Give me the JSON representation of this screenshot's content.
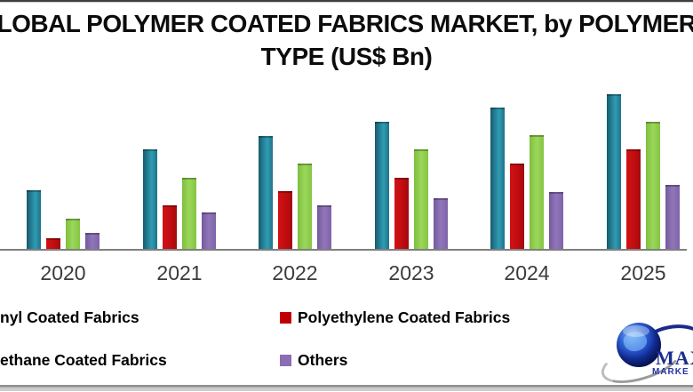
{
  "title": {
    "line1": "LOBAL POLYMER COATED FABRICS MARKET, by POLYMER",
    "line2": "TYPE (US$ Bn)"
  },
  "chart_data": {
    "type": "bar",
    "title": "LOBAL POLYMER COATED FABRICS MARKET, by POLYMER TYPE (US$ Bn)",
    "note": "No y-axis, tick labels or gridlines are visible; values are relative bar heights read from pixels.",
    "categories": [
      "2020",
      "2021",
      "2022",
      "2023",
      "2024",
      "2025"
    ],
    "series": [
      {
        "name": "nyl Coated Fabrics",
        "color": "#26859C",
        "values": [
          66,
          112,
          127,
          143,
          159,
          174
        ]
      },
      {
        "name": "Polyethylene Coated Fabrics",
        "color": "#C00D10",
        "values": [
          12,
          49,
          65,
          80,
          96,
          112
        ]
      },
      {
        "name": "ethane Coated Fabrics",
        "color": "#8FCF4E",
        "values": [
          34,
          80,
          96,
          112,
          128,
          143
        ]
      },
      {
        "name": "Others",
        "color": "#8064A2",
        "values": [
          18,
          41,
          49,
          57,
          64,
          72
        ]
      }
    ],
    "xlabel": "",
    "ylabel": "",
    "ylim": [
      0,
      190
    ],
    "grid": false,
    "legend_position": "bottom"
  },
  "legend": {
    "items": [
      {
        "label": "nyl Coated Fabrics",
        "swatch": ""
      },
      {
        "label": "Polyethylene Coated Fabrics",
        "swatch": "#c00000"
      },
      {
        "label": "ethane Coated Fabrics",
        "swatch": ""
      },
      {
        "label": "Others",
        "swatch": "#8a6db3"
      }
    ]
  },
  "logo": {
    "text_primary": "MAX",
    "text_secondary": "MARKE"
  }
}
